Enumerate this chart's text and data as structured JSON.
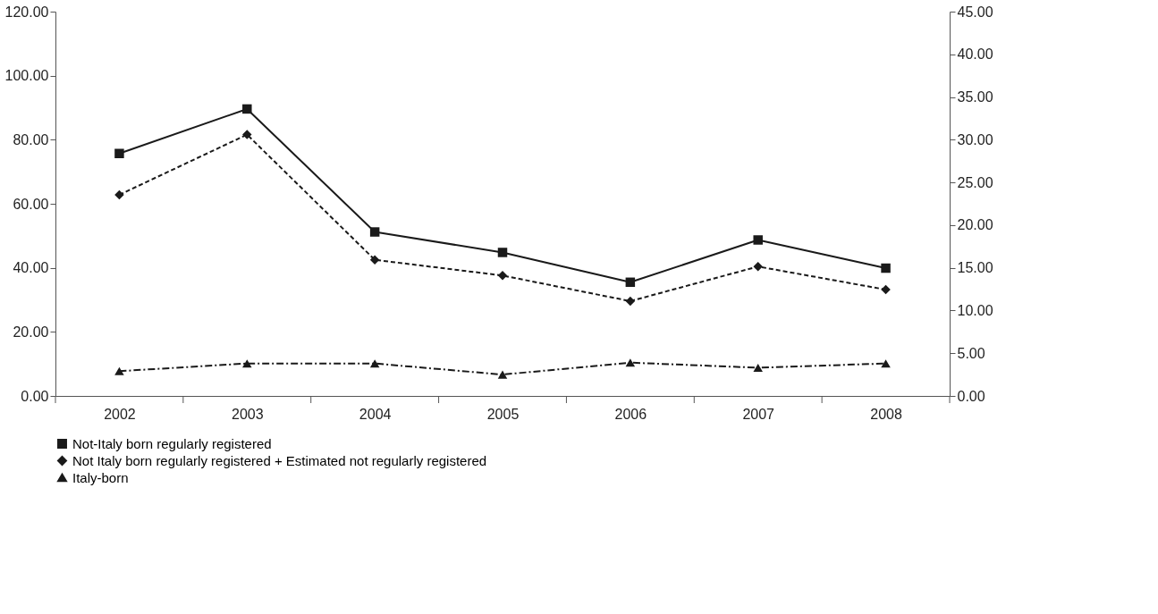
{
  "chart_data": {
    "type": "line",
    "categories": [
      "2002",
      "2003",
      "2004",
      "2005",
      "2006",
      "2007",
      "2008"
    ],
    "series": [
      {
        "name": "Not-Italy born regularly registered",
        "color": "#1a1a1a",
        "marker": "square",
        "line_style": "solid",
        "values": [
          75.7,
          89.6,
          51.2,
          44.8,
          35.5,
          48.7,
          39.9
        ]
      },
      {
        "name": "Not  Italy born regularly registered + Estimated not regularly registered",
        "color": "#1a1a1a",
        "marker": "diamond",
        "line_style": "dashed",
        "values": [
          62.8,
          81.6,
          42.5,
          37.6,
          29.6,
          40.4,
          33.2
        ]
      },
      {
        "name": "Italy-born",
        "color": "#1a1a1a",
        "marker": "triangle",
        "line_style": "dashdot",
        "axis": "y2",
        "values": [
          2.9,
          3.8,
          3.8,
          2.5,
          3.9,
          3.3,
          3.8
        ]
      }
    ],
    "ylim": [
      0,
      120
    ],
    "yticks": [
      {
        "value": 0,
        "label": "0.00"
      },
      {
        "value": 20,
        "label": "20.00"
      },
      {
        "value": 40,
        "label": "40.00"
      },
      {
        "value": 60,
        "label": "60.00"
      },
      {
        "value": 80,
        "label": "80.00"
      },
      {
        "value": 100,
        "label": "100.00"
      },
      {
        "value": 120,
        "label": "120.00"
      }
    ],
    "y2lim": [
      0,
      45
    ],
    "y2ticks": [
      {
        "value": 0,
        "label": "0.00"
      },
      {
        "value": 5,
        "label": "5.00"
      },
      {
        "value": 10,
        "label": "10.00"
      },
      {
        "value": 15,
        "label": "15.00"
      },
      {
        "value": 20,
        "label": "20.00"
      },
      {
        "value": 25,
        "label": "25.00"
      },
      {
        "value": 30,
        "label": "30.00"
      },
      {
        "value": 35,
        "label": "35.00"
      },
      {
        "value": 40,
        "label": "40.00"
      },
      {
        "value": 45,
        "label": "45.00"
      }
    ],
    "grid": false,
    "legend": "bottom"
  }
}
